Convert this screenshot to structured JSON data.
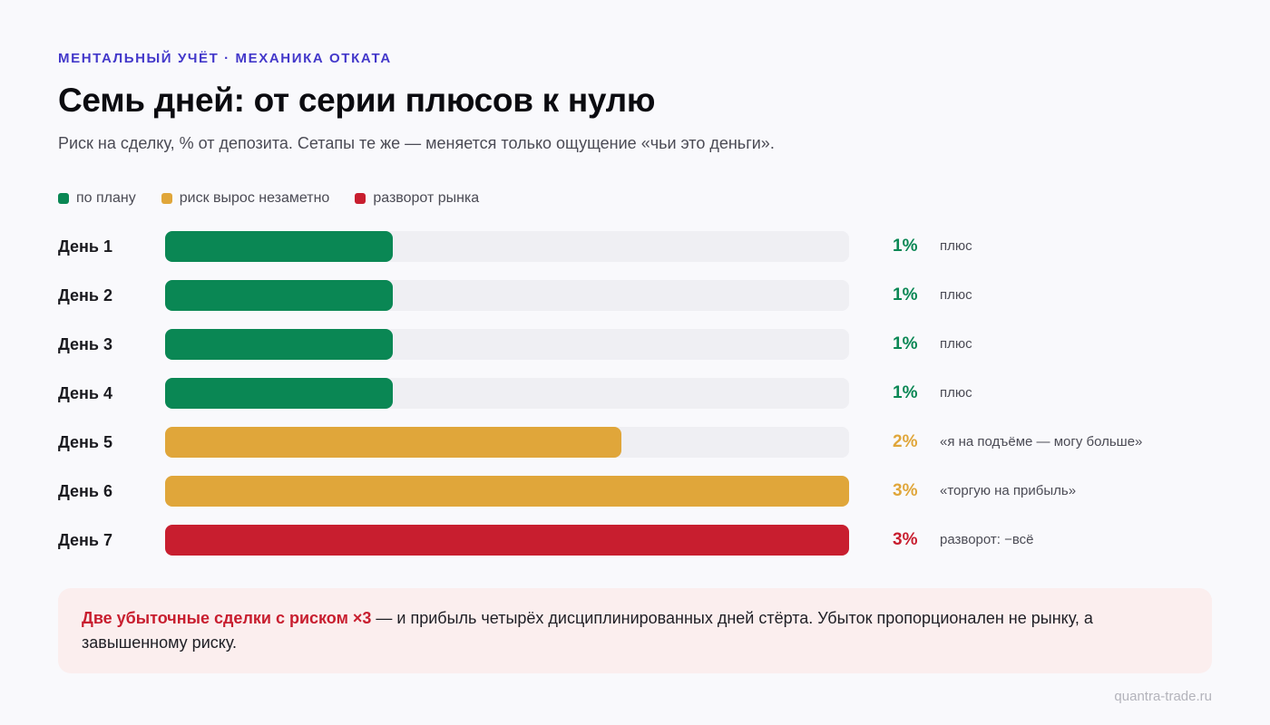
{
  "header": {
    "kicker": "МЕНТАЛЬНЫЙ УЧЁТ · МЕХАНИКА ОТКАТА",
    "title": "Семь дней: от серии плюсов к нулю",
    "subtitle": "Риск на сделку, % от депозита. Сетапы те же — меняется только ощущение «чьи это деньги»."
  },
  "legend": [
    {
      "label": "по плану",
      "color": "#0a8754"
    },
    {
      "label": "риск вырос незаметно",
      "color": "#e0a63a"
    },
    {
      "label": "разворот рынка",
      "color": "#c81e2f"
    }
  ],
  "colors": {
    "track": "#efeff3",
    "plan": "#0a8754",
    "risk_up": "#e0a63a",
    "reversal": "#c81e2f"
  },
  "chart_data": {
    "type": "bar",
    "orientation": "horizontal",
    "categories": [
      "День 1",
      "День 2",
      "День 3",
      "День 4",
      "День 5",
      "День 6",
      "День 7"
    ],
    "values": [
      1,
      1,
      1,
      1,
      2,
      3,
      3
    ],
    "value_labels": [
      "1%",
      "1%",
      "1%",
      "1%",
      "2%",
      "3%",
      "3%"
    ],
    "notes": [
      "плюс",
      "плюс",
      "плюс",
      "плюс",
      "«я на подъёме — могу больше»",
      "«торгую на прибыль»",
      "разворот: −всё"
    ],
    "groups": [
      "plan",
      "plan",
      "plan",
      "plan",
      "risk_up",
      "risk_up",
      "reversal"
    ],
    "xlim": [
      0,
      3
    ],
    "grid": false,
    "legend_position": "top-left"
  },
  "callout": {
    "highlight": "Две убыточные сделки с риском ×3",
    "text": " — и прибыль четырёх дисциплинированных дней стёрта. Убыток пропорционален не рынку, а завышенному риску."
  },
  "footer": {
    "source": "quantra-trade.ru"
  }
}
